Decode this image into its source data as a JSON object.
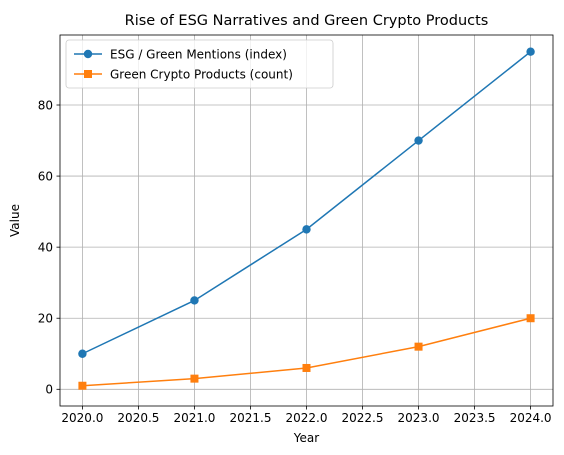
{
  "chart_data": {
    "type": "line",
    "title": "Rise of ESG Narratives and Green Crypto Products",
    "xlabel": "Year",
    "ylabel": "Value",
    "x": [
      2020,
      2021,
      2022,
      2023,
      2024
    ],
    "xlim": [
      2019.8,
      2024.2
    ],
    "ylim": [
      -4.7,
      99.7
    ],
    "xticks": [
      2020.0,
      2020.5,
      2021.0,
      2021.5,
      2022.0,
      2022.5,
      2023.0,
      2023.5,
      2024.0
    ],
    "xtick_labels": [
      "2020.0",
      "2020.5",
      "2021.0",
      "2021.5",
      "2022.0",
      "2022.5",
      "2023.0",
      "2023.5",
      "2024.0"
    ],
    "yticks": [
      0,
      20,
      40,
      60,
      80
    ],
    "ytick_labels": [
      "0",
      "20",
      "40",
      "60",
      "80"
    ],
    "grid": true,
    "legend_position": "top-left",
    "series": [
      {
        "name": "ESG / Green Mentions (index)",
        "values": [
          10,
          25,
          45,
          70,
          95
        ],
        "color": "#1f77b4",
        "marker": "circle"
      },
      {
        "name": "Green Crypto Products (count)",
        "values": [
          1,
          3,
          6,
          12,
          20
        ],
        "color": "#ff7f0e",
        "marker": "square"
      }
    ]
  }
}
